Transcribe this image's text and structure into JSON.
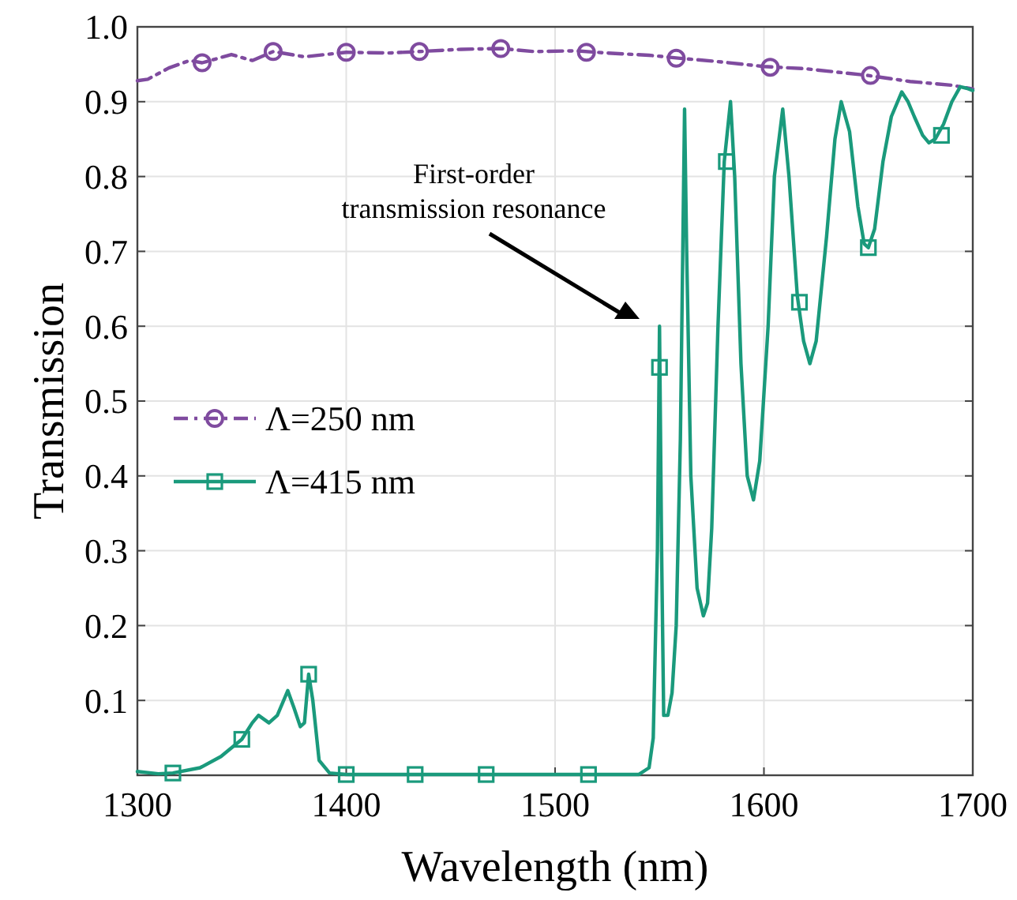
{
  "chart_data": {
    "type": "line",
    "xlabel": "Wavelength (nm)",
    "ylabel": "Transmission",
    "xlim": [
      1300,
      1700
    ],
    "xticks": [
      1300,
      1400,
      1500,
      1600,
      1700
    ],
    "ylim": [
      0,
      1
    ],
    "yticks": [
      0.1,
      0.2,
      0.3,
      0.4,
      0.5,
      0.6,
      0.7,
      0.8,
      0.9,
      {
        "value": 1,
        "label": "1.0"
      }
    ],
    "grid": true,
    "legend": "left",
    "annotations": [
      "First-order\ntransmission resonance"
    ],
    "series": [
      {
        "type": "scatter",
        "color": "#7f4b9f",
        "marker": "circle",
        "x": [
          1331,
          1365,
          1400,
          1435,
          1474,
          1515,
          1558,
          1603,
          1651
        ],
        "values": [
          0.952,
          0.967,
          0.966,
          0.967,
          0.971,
          0.966,
          0.958,
          0.946,
          0.935
        ]
      },
      {
        "type": "scatter",
        "color": "#1a9a7c",
        "marker": "square",
        "x": [
          1317,
          1350,
          1382,
          1400,
          1433,
          1467,
          1516,
          1550,
          1582,
          1617,
          1650,
          1685
        ],
        "values": [
          0.003,
          0.048,
          0.135,
          0.001,
          0.001,
          0.001,
          0.001,
          0.545,
          0.82,
          0.632,
          0.705,
          0.855
        ]
      },
      {
        "name": "Λ=250 nm",
        "color": "#7f4b9f",
        "line_style": "dashed",
        "x": [
          1300,
          1305,
          1315,
          1325,
          1331,
          1345,
          1355,
          1365,
          1380,
          1400,
          1420,
          1435,
          1455,
          1474,
          1490,
          1510,
          1525,
          1545,
          1560,
          1580,
          1600,
          1620,
          1640,
          1650,
          1670,
          1690,
          1700
        ],
        "values": [
          0.928,
          0.93,
          0.945,
          0.955,
          0.952,
          0.963,
          0.955,
          0.967,
          0.96,
          0.966,
          0.965,
          0.967,
          0.97,
          0.971,
          0.967,
          0.968,
          0.965,
          0.962,
          0.958,
          0.953,
          0.947,
          0.944,
          0.938,
          0.935,
          0.927,
          0.922,
          0.917
        ]
      },
      {
        "name": "Λ=415 nm",
        "color": "#1a9a7c",
        "line_style": "solid",
        "x": [
          1300,
          1310,
          1317,
          1330,
          1340,
          1350,
          1355,
          1358,
          1363,
          1367,
          1372,
          1375,
          1378,
          1380,
          1382,
          1384,
          1387,
          1392,
          1400,
          1540,
          1545,
          1547,
          1549,
          1550,
          1551,
          1552,
          1554,
          1556,
          1558,
          1560,
          1562,
          1563,
          1565,
          1568,
          1571,
          1573,
          1575,
          1578,
          1581,
          1584,
          1586,
          1589,
          1592,
          1595,
          1598,
          1602,
          1605,
          1609,
          1612,
          1616,
          1619,
          1622,
          1625,
          1630,
          1634,
          1637,
          1641,
          1645,
          1648,
          1650,
          1653,
          1657,
          1661,
          1666,
          1669,
          1672,
          1676,
          1679,
          1682,
          1686,
          1690,
          1694,
          1697,
          1700
        ],
        "values": [
          0.005,
          0.002,
          0.003,
          0.01,
          0.025,
          0.048,
          0.07,
          0.08,
          0.07,
          0.08,
          0.113,
          0.09,
          0.065,
          0.07,
          0.135,
          0.1,
          0.02,
          0.003,
          0.001,
          0.001,
          0.01,
          0.05,
          0.3,
          0.6,
          0.3,
          0.08,
          0.08,
          0.11,
          0.2,
          0.45,
          0.89,
          0.7,
          0.4,
          0.25,
          0.213,
          0.23,
          0.33,
          0.6,
          0.82,
          0.9,
          0.8,
          0.55,
          0.4,
          0.368,
          0.42,
          0.6,
          0.8,
          0.89,
          0.8,
          0.64,
          0.58,
          0.55,
          0.58,
          0.72,
          0.85,
          0.9,
          0.86,
          0.76,
          0.71,
          0.705,
          0.73,
          0.82,
          0.88,
          0.913,
          0.9,
          0.88,
          0.855,
          0.845,
          0.85,
          0.87,
          0.9,
          0.92,
          0.918,
          0.915
        ]
      }
    ]
  }
}
